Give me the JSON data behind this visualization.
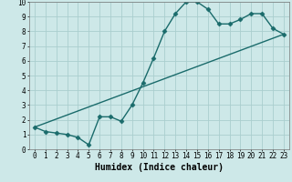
{
  "xlabel": "Humidex (Indice chaleur)",
  "xlim": [
    -0.5,
    23.5
  ],
  "ylim": [
    0,
    10
  ],
  "xticks": [
    0,
    1,
    2,
    3,
    4,
    5,
    6,
    7,
    8,
    9,
    10,
    11,
    12,
    13,
    14,
    15,
    16,
    17,
    18,
    19,
    20,
    21,
    22,
    23
  ],
  "yticks": [
    0,
    1,
    2,
    3,
    4,
    5,
    6,
    7,
    8,
    9,
    10
  ],
  "bg_color": "#cde8e8",
  "grid_color": "#aacece",
  "line_color": "#1a6b6b",
  "curve1_x": [
    0,
    1,
    2,
    3,
    4,
    5,
    6,
    7,
    8,
    9,
    10,
    11,
    12,
    13,
    14,
    15,
    16,
    17,
    18,
    19,
    20,
    21,
    22,
    23
  ],
  "curve1_y": [
    1.5,
    1.2,
    1.1,
    1.0,
    0.8,
    0.3,
    2.2,
    2.2,
    1.9,
    3.0,
    4.5,
    6.2,
    8.0,
    9.2,
    10.0,
    10.0,
    9.5,
    8.5,
    8.5,
    8.8,
    9.2,
    9.2,
    8.2,
    7.8
  ],
  "curve2_x": [
    0,
    23
  ],
  "curve2_y": [
    1.5,
    7.8
  ],
  "marker": "D",
  "marker_size": 2.5,
  "linewidth": 1.0,
  "tick_fontsize": 5.5,
  "xlabel_fontsize": 7.0
}
